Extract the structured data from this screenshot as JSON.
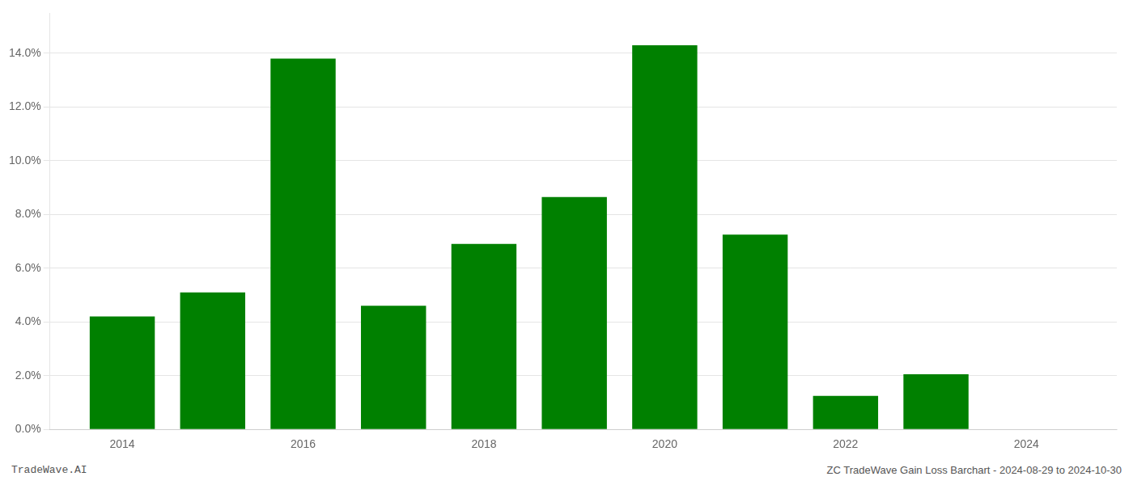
{
  "chart_data": {
    "type": "bar",
    "x": [
      2014,
      2015,
      2016,
      2017,
      2018,
      2019,
      2020,
      2021,
      2022,
      2023,
      2024
    ],
    "values": [
      0.042,
      0.051,
      0.138,
      0.046,
      0.069,
      0.0865,
      0.143,
      0.0725,
      0.0125,
      0.0205,
      0.0
    ],
    "color": "#008000",
    "xlim": [
      2013.2,
      2025.0
    ],
    "xticks": [
      2014,
      2016,
      2018,
      2020,
      2022,
      2024
    ],
    "ylim": [
      0,
      0.155
    ],
    "yticks": [
      {
        "value": 0.0,
        "label": "0.0%"
      },
      {
        "value": 0.02,
        "label": "2.0%"
      },
      {
        "value": 0.04,
        "label": "4.0%"
      },
      {
        "value": 0.06,
        "label": "6.0%"
      },
      {
        "value": 0.08,
        "label": "8.0%"
      },
      {
        "value": 0.1,
        "label": "10.0%"
      },
      {
        "value": 0.12,
        "label": "12.0%"
      },
      {
        "value": 0.14,
        "label": "14.0%"
      }
    ],
    "grid": "y",
    "annotations": [
      "TradeWave.AI",
      "ZC TradeWave Gain Loss Barchart - 2024-08-29 to 2024-10-30"
    ]
  }
}
